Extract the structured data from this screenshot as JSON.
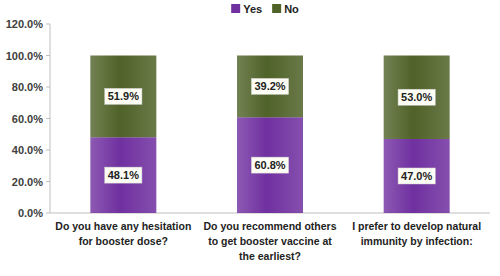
{
  "chart_data": {
    "type": "bar",
    "stacked": true,
    "data_labels": true,
    "legend": "top",
    "grid": false,
    "categories": [
      "Do you have any hesitation for booster dose?",
      "Do you recommend others to get booster vaccine at the earliest?",
      "I prefer to develop natural immunity by infection:"
    ],
    "series": [
      {
        "name": "Yes",
        "color": "#7030a0",
        "values": [
          48.1,
          60.8,
          47.0
        ],
        "value_labels": [
          "48.1%",
          "60.8%",
          "47.0%"
        ]
      },
      {
        "name": "No",
        "color": "#4f6228",
        "values": [
          51.9,
          39.2,
          53.0
        ],
        "value_labels": [
          "51.9%",
          "39.2%",
          "53.0%"
        ]
      }
    ],
    "ylim": [
      0,
      120
    ],
    "yticks": [
      {
        "value": 0,
        "label": "0.0%"
      },
      {
        "value": 20,
        "label": "20.0%"
      },
      {
        "value": 40,
        "label": "40.0%"
      },
      {
        "value": 60,
        "label": "60.0%"
      },
      {
        "value": 80,
        "label": "80.0%"
      },
      {
        "value": 100,
        "label": "100.0%"
      },
      {
        "value": 120,
        "label": "120.0%"
      }
    ]
  }
}
